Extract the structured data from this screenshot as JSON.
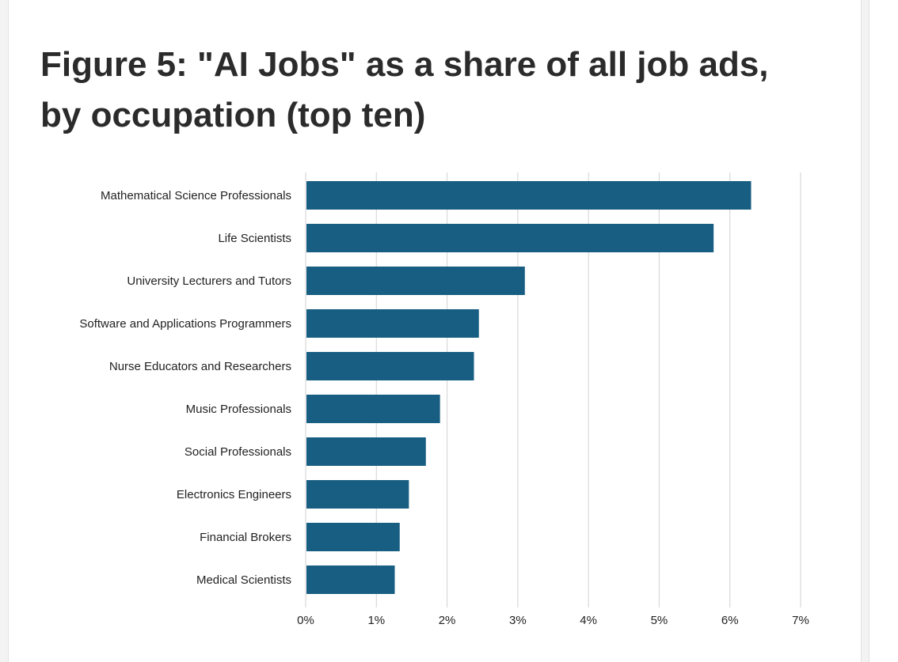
{
  "figure": {
    "title": "Figure 5: \"AI Jobs\" as a share of all job ads, by occupation (top ten)"
  },
  "colors": {
    "bar": "#175e82",
    "grid": "#d9d9d9",
    "text": "#222222"
  },
  "chart_data": {
    "type": "bar",
    "orientation": "horizontal",
    "title": "",
    "xlabel": "",
    "ylabel": "",
    "categories": [
      "Mathematical Science Professionals",
      "Life Scientists",
      "University Lecturers and Tutors",
      "Software and Applications Programmers",
      "Nurse Educators and Researchers",
      "Music Professionals",
      "Social Professionals",
      "Electronics Engineers",
      "Financial Brokers",
      "Medical Scientists"
    ],
    "values": [
      6.3,
      5.77,
      3.1,
      2.45,
      2.38,
      1.9,
      1.7,
      1.46,
      1.33,
      1.26
    ],
    "unit": "%",
    "xlim": [
      0,
      7
    ],
    "xticks": [
      "0%",
      "1%",
      "2%",
      "3%",
      "4%",
      "5%",
      "6%",
      "7%"
    ],
    "grid": "vertical",
    "legend": "none"
  }
}
